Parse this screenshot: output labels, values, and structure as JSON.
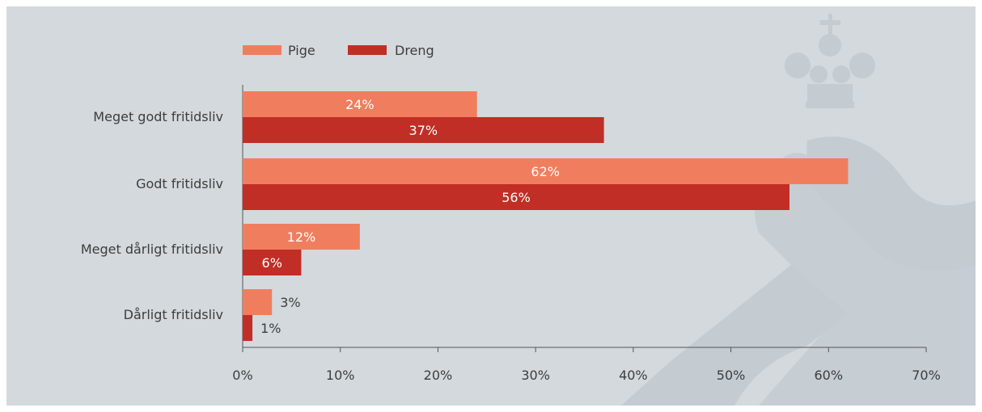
{
  "chart_data": {
    "type": "bar",
    "orientation": "horizontal",
    "categories": [
      "Meget godt fritidsliv",
      "Godt fritidsliv",
      "Meget dårligt fritidsliv",
      "Dårligt fritidsliv"
    ],
    "series": [
      {
        "name": "Pige",
        "values": [
          24,
          62,
          12,
          3
        ],
        "labels": [
          "24%",
          "62%",
          "12%",
          "3%"
        ],
        "color": "#f07e5e"
      },
      {
        "name": "Dreng",
        "values": [
          37,
          56,
          6,
          1
        ],
        "labels": [
          "37%",
          "56%",
          "6%",
          "1%"
        ],
        "color": "#c12e26"
      }
    ],
    "xlim": [
      0,
      70
    ],
    "xticks": [
      0,
      10,
      20,
      30,
      40,
      50,
      60,
      70
    ],
    "xtick_labels": [
      "0%",
      "10%",
      "20%",
      "30%",
      "40%",
      "50%",
      "60%",
      "70%"
    ],
    "title": "",
    "xlabel": "",
    "ylabel": "",
    "grid": false,
    "legend": "top-left"
  },
  "colors": {
    "background": "#d3d9dd",
    "watermark": "#c4cbd1",
    "axis": "#555555",
    "text": "#3d3d3d",
    "label_inside": "#ffffff"
  },
  "watermark_icon": "crown-cross-logo"
}
